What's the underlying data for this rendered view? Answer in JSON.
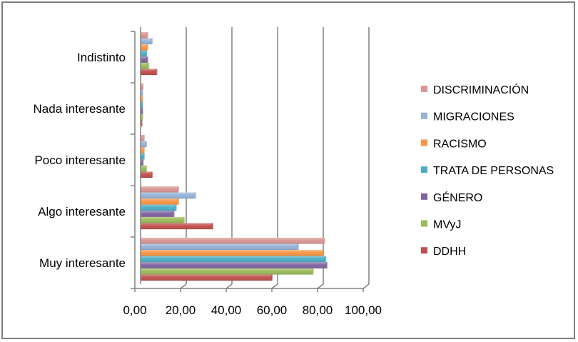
{
  "chart_data": {
    "type": "bar",
    "orientation": "horizontal",
    "categories": [
      "Muy interesante",
      "Algo interesante",
      "Poco interesante",
      "Nada interesante",
      "Indistinto"
    ],
    "series": [
      {
        "name": "DISCRIMINACIÓN",
        "color": "#D99694",
        "values": [
          80.5,
          16.5,
          1.5,
          1.0,
          3.0
        ]
      },
      {
        "name": "MIGRACIONES",
        "color": "#95B3D7",
        "values": [
          69.0,
          24.0,
          2.5,
          0.8,
          5.0
        ]
      },
      {
        "name": "RACISMO",
        "color": "#F79646",
        "values": [
          80.0,
          16.5,
          1.5,
          0.8,
          3.0
        ]
      },
      {
        "name": "TRATA DE PERSONAS",
        "color": "#4BACC6",
        "values": [
          81.0,
          15.5,
          1.5,
          0.8,
          2.5
        ]
      },
      {
        "name": "GÉNERO",
        "color": "#8064A2",
        "values": [
          81.5,
          14.5,
          1.0,
          0.8,
          3.0
        ]
      },
      {
        "name": "MVyJ",
        "color": "#9BBB59",
        "values": [
          75.5,
          19.0,
          2.5,
          0.8,
          3.5
        ]
      },
      {
        "name": "DDHH",
        "color": "#C0504D",
        "values": [
          57.5,
          31.5,
          5.0,
          0.5,
          7.0
        ]
      }
    ],
    "xticks": [
      "0,00",
      "20,00",
      "40,00",
      "60,00",
      "80,00",
      "100,00"
    ],
    "xlim": [
      0,
      100
    ],
    "gridlines": true,
    "legend_position": "right"
  }
}
